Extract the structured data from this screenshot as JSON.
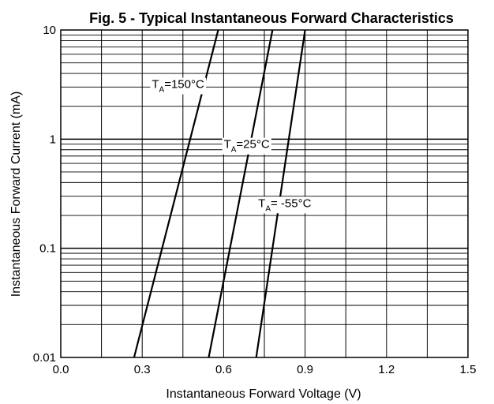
{
  "chart_data": {
    "type": "line",
    "title": "Fig. 5 - Typical Instantaneous Forward Characteristics",
    "xlabel": "Instantaneous Forward Voltage (V)",
    "ylabel": "Instantaneous Forward Current (mA)",
    "xlim": [
      0.0,
      1.5
    ],
    "ylim": [
      0.01,
      10
    ],
    "yscale": "log",
    "grid": true,
    "legend": "none",
    "x_ticks": [
      "0.0",
      "0.3",
      "0.6",
      "0.9",
      "1.2",
      "1.5"
    ],
    "y_ticks": [
      "0.01",
      "0.1",
      "1",
      "10"
    ],
    "series": [
      {
        "name": "TA=150°C",
        "label_main": "T",
        "label_sub": "A",
        "label_rest": "=150°C",
        "x": [
          0.27,
          0.58
        ],
        "y": [
          0.01,
          10
        ],
        "label_at": [
          0.432,
          3.2
        ]
      },
      {
        "name": "TA=25°C",
        "label_main": "T",
        "label_sub": "A",
        "label_rest": "=25°C",
        "x": [
          0.545,
          0.78
        ],
        "y": [
          0.01,
          10
        ],
        "label_at": [
          0.685,
          0.9
        ]
      },
      {
        "name": "TA= -55°C",
        "label_main": "T",
        "label_sub": "A",
        "label_rest": "= -55°C",
        "x": [
          0.72,
          0.9
        ],
        "y": [
          0.01,
          10
        ],
        "label_at": [
          0.825,
          0.26
        ]
      }
    ]
  }
}
